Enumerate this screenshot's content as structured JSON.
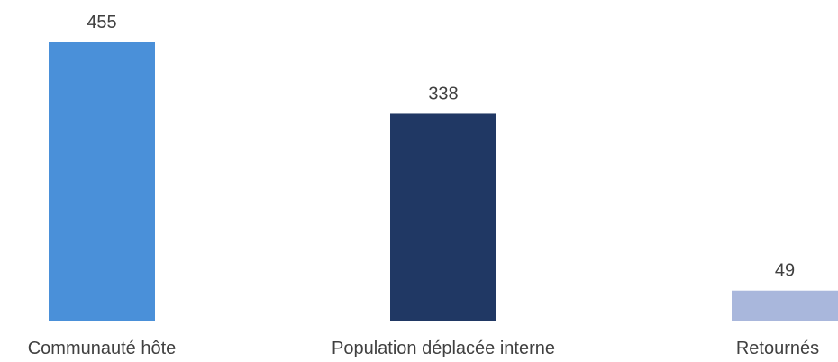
{
  "chart_data": {
    "type": "bar",
    "categories": [
      "Communauté hôte",
      "Population déplacée interne",
      "Retournés"
    ],
    "values": [
      455,
      338,
      49
    ],
    "colors": [
      "#4a90d9",
      "#203864",
      "#a9b7dc"
    ],
    "data_labels": [
      "455",
      "338",
      "49"
    ],
    "ylim": [
      0,
      455
    ],
    "grid": false,
    "legend": "none"
  }
}
